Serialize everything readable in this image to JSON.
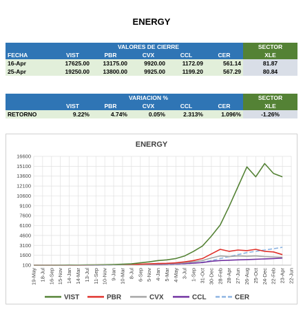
{
  "header": {
    "title": "ENERGY"
  },
  "table1": {
    "group": "VALORES DE CIERRE",
    "sector": "SECTOR",
    "columns": [
      "FECHA",
      "VIST",
      "PBR",
      "CVX",
      "CCL",
      "CER",
      "XLE"
    ],
    "rows": [
      [
        "16-Apr",
        "17625.00",
        "13175.00",
        "9920.00",
        "1172.09",
        "561.14",
        "81.87"
      ],
      [
        "25-Apr",
        "19250.00",
        "13800.00",
        "9925.00",
        "1199.20",
        "567.29",
        "80.84"
      ]
    ]
  },
  "table2": {
    "group": "VARIACION %",
    "sector": "SECTOR",
    "columns": [
      "VIST",
      "PBR",
      "CVX",
      "CCL",
      "CER",
      "XLE"
    ],
    "rows": [
      [
        "RETORNO",
        "9.22%",
        "4.74%",
        "0.05%",
        "2.313%",
        "1.096%",
        "-1.26%"
      ]
    ]
  },
  "chart_data": {
    "type": "line",
    "title": "ENERGY",
    "categories": [
      "19-May",
      "18-Jul",
      "16-Sep",
      "15-Nov",
      "14-Jan",
      "14-Mar",
      "13-Jul",
      "11-Sep",
      "10-Nov",
      "9-Jan",
      "10-Mar",
      "8-Jul",
      "6-Sep",
      "5-Nov",
      "4-Jan",
      "5-Mar",
      "4-May",
      "3-Jul",
      "1-Sep",
      "31-Oct",
      "30-Dec",
      "28-Feb",
      "28-Apr",
      "27-Jun",
      "26-Aug",
      "25-Oct",
      "24-Dec",
      "22-Feb",
      "23-Apr",
      "22-Jun"
    ],
    "series": [
      {
        "name": "VIST",
        "color": "#548235",
        "values": [
          100,
          100,
          100,
          110,
          130,
          120,
          140,
          150,
          170,
          200,
          250,
          300,
          450,
          600,
          800,
          900,
          1100,
          1500,
          2200,
          3000,
          4500,
          6200,
          9000,
          12000,
          15000,
          13500,
          15500,
          14000,
          13500,
          null
        ]
      },
      {
        "name": "PBR",
        "color": "#e0302a",
        "values": [
          100,
          100,
          100,
          100,
          110,
          100,
          120,
          130,
          140,
          150,
          160,
          180,
          250,
          300,
          350,
          380,
          450,
          600,
          800,
          1100,
          1800,
          2500,
          2200,
          2400,
          2300,
          2500,
          2200,
          2100,
          1700,
          null
        ]
      },
      {
        "name": "CVX",
        "color": "#a5a5a5",
        "values": [
          100,
          100,
          100,
          100,
          100,
          100,
          110,
          120,
          130,
          140,
          150,
          170,
          220,
          260,
          300,
          320,
          380,
          450,
          600,
          800,
          1200,
          1500,
          1400,
          1500,
          1450,
          1500,
          1400,
          1350,
          1300,
          null
        ]
      },
      {
        "name": "CCL",
        "color": "#7030a0",
        "values": [
          100,
          100,
          100,
          100,
          100,
          100,
          110,
          115,
          120,
          130,
          140,
          150,
          180,
          200,
          230,
          260,
          300,
          340,
          400,
          500,
          700,
          800,
          850,
          900,
          950,
          1000,
          1050,
          1100,
          1180,
          null
        ]
      },
      {
        "name": "CER",
        "color": "#8db4e2",
        "dashed": true,
        "values": [
          100,
          100,
          100,
          100,
          100,
          105,
          110,
          115,
          120,
          125,
          130,
          140,
          160,
          180,
          200,
          230,
          270,
          320,
          400,
          550,
          800,
          1100,
          1400,
          1700,
          2000,
          2200,
          2400,
          2600,
          2800,
          null
        ]
      }
    ],
    "ylim": [
      100,
      16600
    ],
    "yticks": [
      100,
      1600,
      3100,
      4600,
      6100,
      7600,
      9100,
      10600,
      12100,
      13600,
      15100,
      16600
    ],
    "grid": true,
    "legend": "bottom"
  }
}
